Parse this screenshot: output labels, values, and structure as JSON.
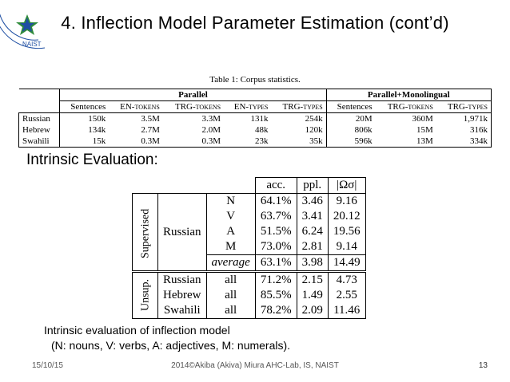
{
  "slide": {
    "title": "4. Inflection Model Parameter Estimation (cont’d)",
    "table1_caption": "Table 1: Corpus statistics.",
    "corpus_table": {
      "group_headers": [
        "Parallel",
        "Parallel+Monolingual"
      ],
      "columns": [
        "Sentences",
        "EN-tokens",
        "TRG-tokens",
        "EN-types",
        "TRG-types",
        "Sentences",
        "TRG-tokens",
        "TRG-types"
      ],
      "rows": [
        {
          "lang": "Russian",
          "values": [
            "150k",
            "3.5M",
            "3.3M",
            "131k",
            "254k",
            "20M",
            "360M",
            "1,971k"
          ]
        },
        {
          "lang": "Hebrew",
          "values": [
            "134k",
            "2.7M",
            "2.0M",
            "48k",
            "120k",
            "806k",
            "15M",
            "316k"
          ]
        },
        {
          "lang": "Swahili",
          "values": [
            "15k",
            "0.3M",
            "0.3M",
            "23k",
            "35k",
            "596k",
            "13M",
            "334k"
          ]
        }
      ]
    },
    "intrinsic_label": "Intrinsic Evaluation:",
    "eval_table": {
      "headers": [
        "acc.",
        "ppl.",
        "|Ωσ|"
      ],
      "supervised_label": "Supervised",
      "unsup_label": "Unsup.",
      "supervised_lang": "Russian",
      "supervised_rows": [
        {
          "pos": "N",
          "acc": "64.1%",
          "ppl": "3.46",
          "omega": "9.16"
        },
        {
          "pos": "V",
          "acc": "63.7%",
          "ppl": "3.41",
          "omega": "20.12"
        },
        {
          "pos": "A",
          "acc": "51.5%",
          "ppl": "6.24",
          "omega": "19.56"
        },
        {
          "pos": "M",
          "acc": "73.0%",
          "ppl": "2.81",
          "omega": "9.14"
        }
      ],
      "average_row": {
        "pos": "average",
        "acc": "63.1%",
        "ppl": "3.98",
        "omega": "14.49"
      },
      "unsup_rows": [
        {
          "lang": "Russian",
          "pos": "all",
          "acc": "71.2%",
          "ppl": "2.15",
          "omega": "4.73"
        },
        {
          "lang": "Hebrew",
          "pos": "all",
          "acc": "85.5%",
          "ppl": "1.49",
          "omega": "2.55"
        },
        {
          "lang": "Swahili",
          "pos": "all",
          "acc": "78.2%",
          "ppl": "2.09",
          "omega": "11.46"
        }
      ]
    },
    "note_line1": "Intrinsic evaluation of inflection model",
    "note_line2": "(N: nouns, V: verbs, A: adjectives, M: numerals).",
    "footer": {
      "date": "15/10/15",
      "credit": "2014©Akiba (Akiva) Miura   AHC-Lab, IS, NAIST",
      "page": "13"
    },
    "logo": {
      "ring_text": "Institute of Science and Technology",
      "wordmark": "NAIST",
      "colors": {
        "green": "#2e8b3a",
        "blue": "#1f4fa3"
      }
    }
  }
}
